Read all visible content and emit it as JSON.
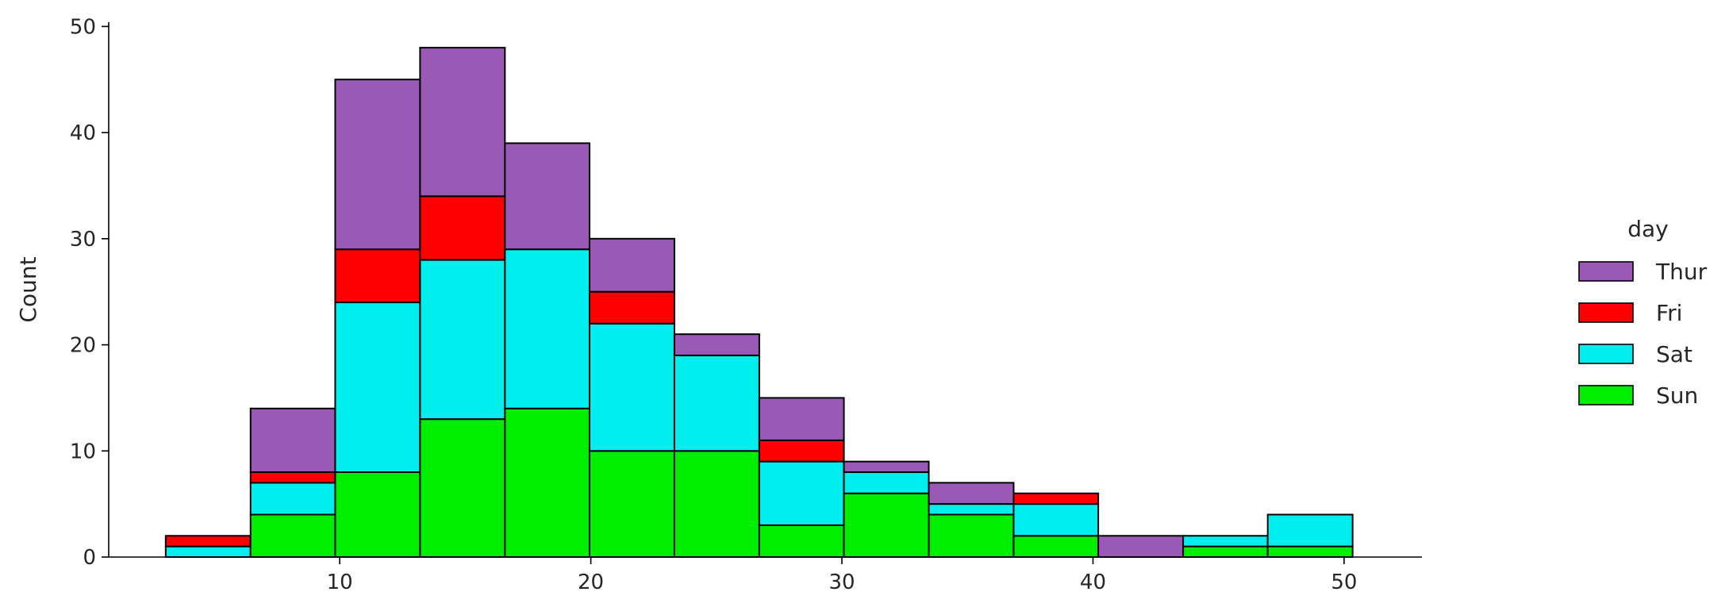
{
  "chart_data": {
    "type": "bar",
    "stacked": true,
    "histogram": true,
    "bin_edges": [
      3.07,
      6.45,
      9.82,
      13.2,
      16.58,
      19.95,
      23.33,
      26.71,
      30.08,
      33.46,
      36.84,
      40.21,
      43.59,
      46.96,
      50.34
    ],
    "series": [
      {
        "name": "Sun",
        "color": "#00ee00",
        "values": [
          0,
          4,
          8,
          13,
          14,
          10,
          10,
          3,
          6,
          4,
          2,
          0,
          1,
          1
        ]
      },
      {
        "name": "Sat",
        "color": "#00eeee",
        "values": [
          1,
          3,
          16,
          15,
          15,
          12,
          9,
          6,
          2,
          1,
          3,
          0,
          1,
          3
        ]
      },
      {
        "name": "Fri",
        "color": "#ff0000",
        "values": [
          1,
          1,
          5,
          6,
          0,
          3,
          0,
          2,
          0,
          0,
          1,
          0,
          0,
          0
        ]
      },
      {
        "name": "Thur",
        "color": "#9b59b6",
        "values": [
          0,
          6,
          16,
          14,
          10,
          5,
          2,
          4,
          1,
          2,
          0,
          2,
          0,
          0
        ]
      }
    ],
    "xlim": [
      0.8,
      53.1
    ],
    "ylim": [
      0,
      50.4
    ],
    "xticks": [
      10,
      20,
      30,
      40,
      50
    ],
    "yticks": [
      0,
      10,
      20,
      30,
      40,
      50
    ],
    "xlabel": "",
    "ylabel": "Count",
    "title": "",
    "grid": false,
    "legend": {
      "title": "day",
      "placement": "outside-right",
      "order": [
        "Thur",
        "Fri",
        "Sat",
        "Sun"
      ]
    }
  }
}
